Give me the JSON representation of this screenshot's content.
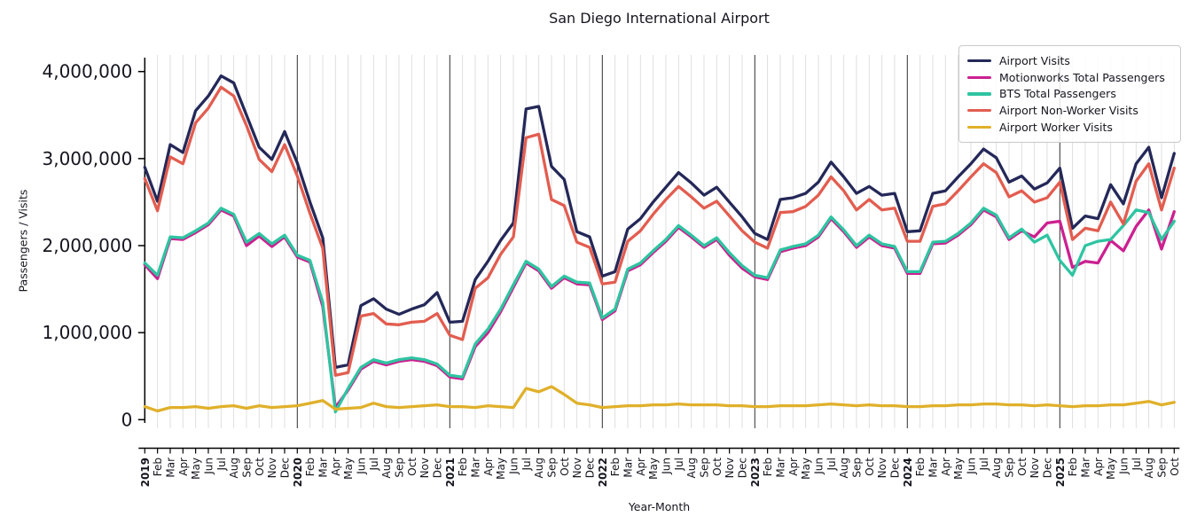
{
  "title": "San Diego International Airport",
  "axes": {
    "x_label": "Year-Month",
    "y_label": "Passengers / Visits",
    "y_ticks": [
      {
        "v": 0,
        "label": "0"
      },
      {
        "v": 1,
        "label": "1,000,000"
      },
      {
        "v": 2,
        "label": "2,000,000"
      },
      {
        "v": 3,
        "label": "3,000,000"
      },
      {
        "v": 4,
        "label": "4,000,000"
      }
    ]
  },
  "legend": {
    "position": "upper right",
    "entries": [
      "Airport Visits",
      "Motionworks Total Passengers",
      "BTS Total Passengers",
      "Airport Non-Worker Visits",
      "Airport Worker Visits"
    ]
  },
  "chart_data": {
    "type": "line",
    "title": "San Diego International Airport",
    "xlabel": "Year-Month",
    "ylabel": "Passengers / Visits",
    "x_range_note": "monthly, Jan 2019 - Oct 2025; bold 4-digit labels mark January of each year",
    "x_tick_labels": [
      "2019",
      "Feb",
      "Mar",
      "Apr",
      "May",
      "Jun",
      "Jul",
      "Aug",
      "Sep",
      "Oct",
      "Nov",
      "Dec",
      "2020",
      "Feb",
      "Mar",
      "Apr",
      "May",
      "Jun",
      "Jul",
      "Aug",
      "Sep",
      "Oct",
      "Nov",
      "Dec",
      "2021",
      "Feb",
      "Mar",
      "Apr",
      "May",
      "Jun",
      "Jul",
      "Aug",
      "Sep",
      "Oct",
      "Nov",
      "Dec",
      "2022",
      "Feb",
      "Mar",
      "Apr",
      "May",
      "Jun",
      "Jul",
      "Aug",
      "Sep",
      "Oct",
      "Nov",
      "Dec",
      "2023",
      "Feb",
      "Mar",
      "Apr",
      "May",
      "Jun",
      "Jul",
      "Aug",
      "Sep",
      "Oct",
      "Nov",
      "Dec",
      "2024",
      "Feb",
      "Mar",
      "Apr",
      "May",
      "Jun",
      "Jul",
      "Aug",
      "Sep",
      "Oct",
      "Nov",
      "Dec",
      "2025",
      "Feb",
      "Mar",
      "Apr",
      "May",
      "Jun",
      "Jul",
      "Aug",
      "Sep",
      "Oct"
    ],
    "y_tick_labels": [
      "0",
      "1,000,000",
      "2,000,000",
      "3,000,000",
      "4,000,000"
    ],
    "ylim_millions": [
      0,
      4.19
    ],
    "values_unit": "millions of passengers / visits (estimated from plot)",
    "grid": {
      "vertical_monthly": true,
      "year_boundary_lines_dark": true,
      "horizontal": false
    },
    "legend_position": "upper right",
    "series": [
      {
        "name": "Airport Visits",
        "color": "#242858",
        "values_millions": [
          2.9,
          2.51,
          3.16,
          3.07,
          3.55,
          3.72,
          3.95,
          3.87,
          3.5,
          3.13,
          2.99,
          3.31,
          2.95,
          2.5,
          2.09,
          0.6,
          0.63,
          1.31,
          1.39,
          1.27,
          1.21,
          1.27,
          1.32,
          1.46,
          1.12,
          1.13,
          1.61,
          1.82,
          2.06,
          2.26,
          3.57,
          3.6,
          2.91,
          2.76,
          2.16,
          2.1,
          1.65,
          1.7,
          2.19,
          2.31,
          2.5,
          2.67,
          2.84,
          2.72,
          2.58,
          2.67,
          2.5,
          2.33,
          2.14,
          2.07,
          2.53,
          2.55,
          2.6,
          2.73,
          2.96,
          2.79,
          2.6,
          2.68,
          2.58,
          2.6,
          2.16,
          2.17,
          2.6,
          2.63,
          2.79,
          2.94,
          3.11,
          3.01,
          2.73,
          2.8,
          2.65,
          2.72,
          2.89,
          2.2,
          2.34,
          2.31,
          2.7,
          2.48,
          2.94,
          3.13,
          2.55,
          3.06
        ]
      },
      {
        "name": "Motionworks Total Passengers",
        "color": "#cc2090",
        "values_millions": [
          1.78,
          1.62,
          2.08,
          2.07,
          2.15,
          2.24,
          2.41,
          2.34,
          2.0,
          2.11,
          1.99,
          2.1,
          1.87,
          1.81,
          1.3,
          0.14,
          0.34,
          0.58,
          0.67,
          0.63,
          0.67,
          0.69,
          0.67,
          0.62,
          0.49,
          0.47,
          0.84,
          1.0,
          1.24,
          1.52,
          1.8,
          1.71,
          1.51,
          1.63,
          1.56,
          1.55,
          1.15,
          1.25,
          1.71,
          1.78,
          1.92,
          2.05,
          2.21,
          2.1,
          1.98,
          2.07,
          1.89,
          1.74,
          1.64,
          1.61,
          1.93,
          1.97,
          2.0,
          2.1,
          2.31,
          2.16,
          1.98,
          2.1,
          2.0,
          1.97,
          1.68,
          1.68,
          2.02,
          2.03,
          2.12,
          2.24,
          2.41,
          2.33,
          2.07,
          2.17,
          2.1,
          2.26,
          2.28,
          1.75,
          1.82,
          1.8,
          2.06,
          1.94,
          2.22,
          2.41,
          1.96,
          2.39
        ]
      },
      {
        "name": "BTS Total Passengers",
        "color": "#2ec4a1",
        "values_millions": [
          1.8,
          1.66,
          2.1,
          2.09,
          2.17,
          2.26,
          2.43,
          2.36,
          2.04,
          2.14,
          2.02,
          2.12,
          1.89,
          1.83,
          1.35,
          0.09,
          0.36,
          0.6,
          0.69,
          0.65,
          0.69,
          0.71,
          0.69,
          0.64,
          0.51,
          0.49,
          0.87,
          1.04,
          1.27,
          1.55,
          1.82,
          1.73,
          1.53,
          1.65,
          1.58,
          1.57,
          1.17,
          1.27,
          1.73,
          1.8,
          1.94,
          2.07,
          2.23,
          2.12,
          2.0,
          2.09,
          1.92,
          1.77,
          1.66,
          1.63,
          1.95,
          1.99,
          2.02,
          2.12,
          2.33,
          2.18,
          2.0,
          2.12,
          2.02,
          1.99,
          1.7,
          1.7,
          2.04,
          2.05,
          2.14,
          2.26,
          2.43,
          2.35,
          2.09,
          2.19,
          2.04,
          2.12,
          1.83,
          1.66,
          2.0,
          2.05,
          2.07,
          2.23,
          2.41,
          2.38,
          2.07,
          2.28
        ]
      },
      {
        "name": "Airport Non-Worker Visits",
        "color": "#e25d50",
        "values_millions": [
          2.77,
          2.4,
          3.02,
          2.94,
          3.41,
          3.58,
          3.82,
          3.72,
          3.38,
          2.99,
          2.85,
          3.16,
          2.8,
          2.37,
          1.97,
          0.51,
          0.54,
          1.19,
          1.22,
          1.1,
          1.09,
          1.12,
          1.13,
          1.22,
          0.97,
          0.92,
          1.51,
          1.63,
          1.9,
          2.1,
          3.24,
          3.28,
          2.53,
          2.46,
          2.04,
          1.98,
          1.56,
          1.58,
          2.05,
          2.17,
          2.36,
          2.53,
          2.68,
          2.56,
          2.43,
          2.51,
          2.34,
          2.17,
          2.04,
          1.97,
          2.38,
          2.39,
          2.45,
          2.58,
          2.79,
          2.63,
          2.41,
          2.53,
          2.41,
          2.43,
          2.05,
          2.05,
          2.45,
          2.48,
          2.63,
          2.79,
          2.94,
          2.84,
          2.56,
          2.63,
          2.5,
          2.55,
          2.73,
          2.07,
          2.2,
          2.17,
          2.5,
          2.25,
          2.74,
          2.94,
          2.41,
          2.89
        ]
      },
      {
        "name": "Airport Worker Visits",
        "color": "#e0b02a",
        "values_millions": [
          0.15,
          0.1,
          0.14,
          0.14,
          0.15,
          0.13,
          0.15,
          0.16,
          0.13,
          0.16,
          0.14,
          0.15,
          0.16,
          0.19,
          0.22,
          0.12,
          0.13,
          0.14,
          0.19,
          0.15,
          0.14,
          0.15,
          0.16,
          0.17,
          0.15,
          0.15,
          0.14,
          0.16,
          0.15,
          0.14,
          0.36,
          0.32,
          0.38,
          0.29,
          0.19,
          0.17,
          0.14,
          0.15,
          0.16,
          0.16,
          0.17,
          0.17,
          0.18,
          0.17,
          0.17,
          0.17,
          0.16,
          0.16,
          0.15,
          0.15,
          0.16,
          0.16,
          0.16,
          0.17,
          0.18,
          0.17,
          0.16,
          0.17,
          0.16,
          0.16,
          0.15,
          0.15,
          0.16,
          0.16,
          0.17,
          0.17,
          0.18,
          0.18,
          0.17,
          0.17,
          0.16,
          0.17,
          0.16,
          0.15,
          0.16,
          0.16,
          0.17,
          0.17,
          0.19,
          0.21,
          0.17,
          0.2
        ]
      }
    ],
    "colors": {
      "airport_visits": "#242858",
      "motionworks_total_passengers": "#cc2090",
      "bts_total_passengers": "#2ec4a1",
      "airport_nonworker_visits": "#e25d50",
      "airport_worker_visits": "#e0b02a",
      "month_gridline": "#dcdcdc",
      "year_gridline": "#2f2f2f",
      "axis": "#000000"
    }
  }
}
